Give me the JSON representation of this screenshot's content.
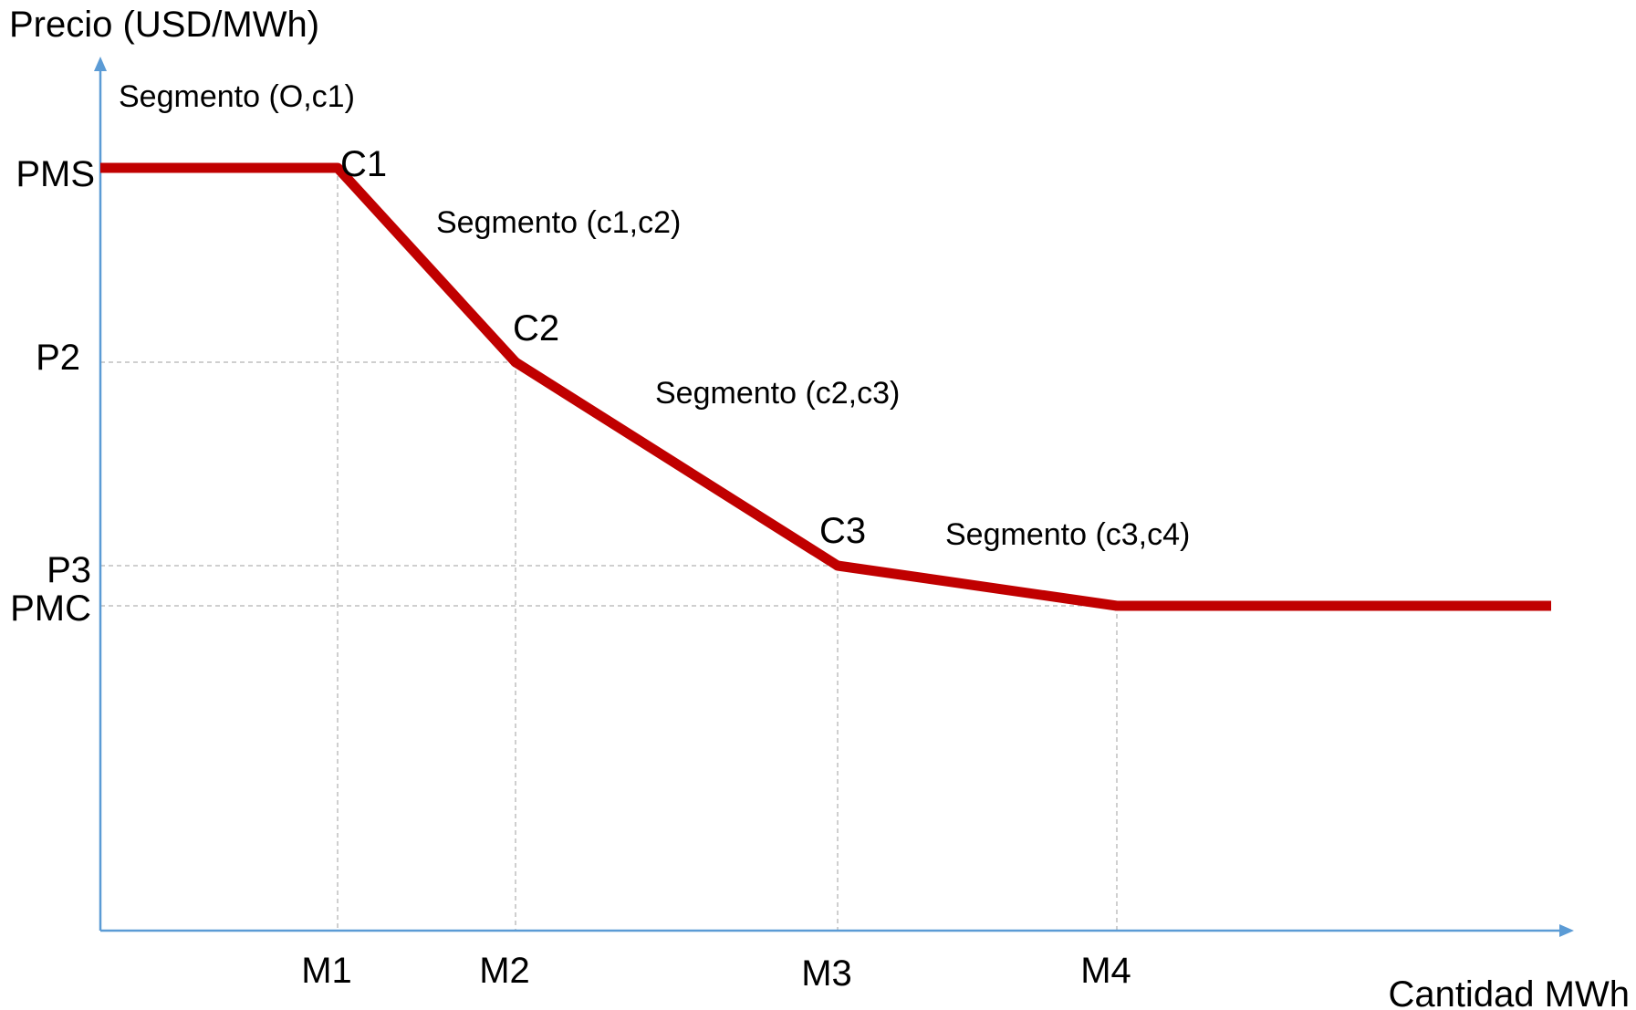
{
  "chart_data": {
    "type": "line",
    "title": "",
    "ylabel": "Precio (USD/MWh)",
    "xlabel": "Cantidad MWh",
    "x_ticks": [
      "M1",
      "M2",
      "M3",
      "M4"
    ],
    "y_ticks": [
      "PMS",
      "P2",
      "P3",
      "PMC"
    ],
    "series": [
      {
        "color": "#c00000",
        "points": [
          {
            "x": "0",
            "y": "PMS"
          },
          {
            "x": "M1",
            "y": "PMS"
          },
          {
            "x": "M2",
            "y": "P2"
          },
          {
            "x": "M3",
            "y": "P3"
          },
          {
            "x": "M4",
            "y": "PMC"
          },
          {
            "x": "end",
            "y": "PMC"
          }
        ]
      }
    ],
    "point_labels": [
      "C1",
      "C2",
      "C3"
    ],
    "segment_labels": [
      "Segmento (O,c1)",
      "Segmento (c1,c2)",
      "Segmento (c2,c3)",
      "Segmento (c3,c4)"
    ],
    "grid": false,
    "guide_lines": "dashed",
    "colors": {
      "axis": "#5b9bd5",
      "curve": "#c00000",
      "guide": "#bfbfbf"
    }
  }
}
